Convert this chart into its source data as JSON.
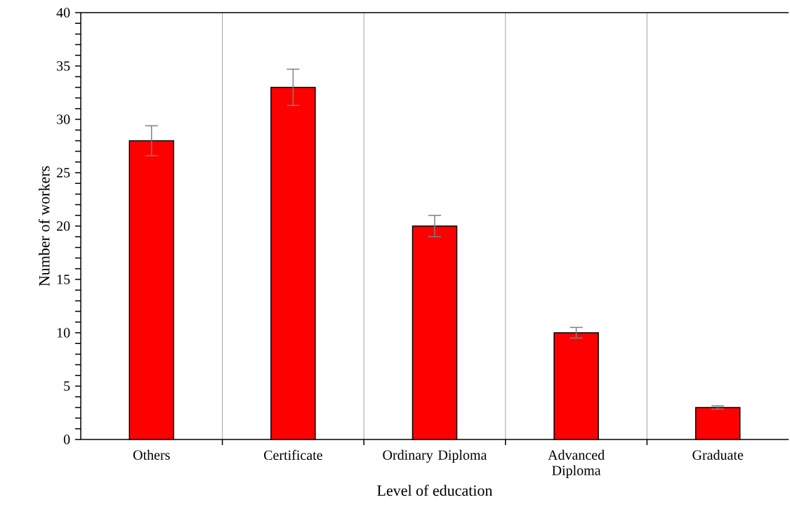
{
  "chart_data": {
    "type": "bar",
    "xlabel": "Level of education",
    "ylabel": "Number of workers",
    "categories": [
      "Others",
      "Certificate",
      "Ordinary Diploma",
      "Advanced Diploma",
      "Graduate"
    ],
    "values": [
      28,
      33,
      20,
      10,
      3
    ],
    "errors": [
      1.4,
      1.7,
      1,
      0.5,
      0.15
    ],
    "color": "#ff0000",
    "ylim": [
      0,
      40
    ],
    "yticks": [
      0,
      5,
      10,
      15,
      20,
      25,
      30,
      35,
      40
    ],
    "grid": "x"
  }
}
